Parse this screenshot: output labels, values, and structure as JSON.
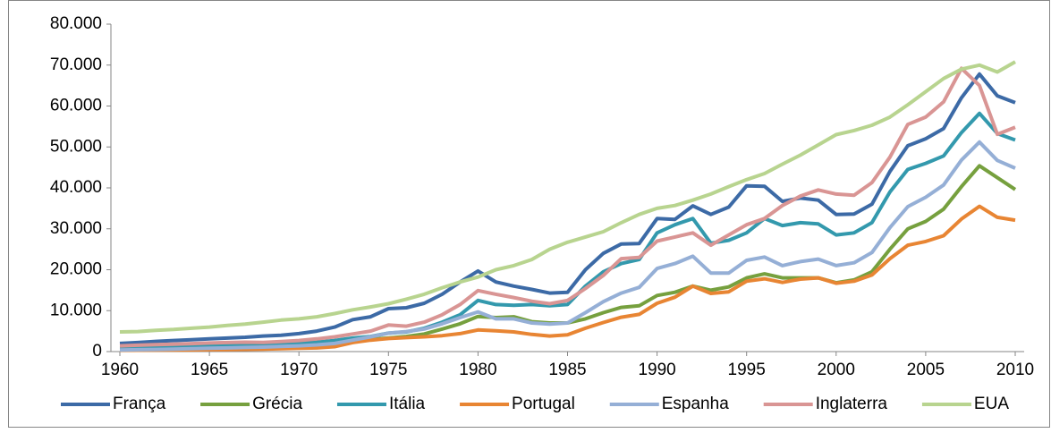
{
  "chart_data": {
    "type": "line",
    "x": [
      1960,
      1961,
      1962,
      1963,
      1964,
      1965,
      1966,
      1967,
      1968,
      1969,
      1970,
      1971,
      1972,
      1973,
      1974,
      1975,
      1976,
      1977,
      1978,
      1979,
      1980,
      1981,
      1982,
      1983,
      1984,
      1985,
      1986,
      1987,
      1988,
      1989,
      1990,
      1991,
      1992,
      1993,
      1994,
      1995,
      1996,
      1997,
      1998,
      1999,
      2000,
      2001,
      2002,
      2003,
      2004,
      2005,
      2006,
      2007,
      2008,
      2009,
      2010
    ],
    "series": [
      {
        "name": "França",
        "color": "#3c6aa6",
        "values": [
          2000,
          2200,
          2500,
          2700,
          2900,
          3100,
          3300,
          3500,
          3800,
          4000,
          4400,
          5000,
          6000,
          7800,
          8500,
          10500,
          10700,
          11800,
          14000,
          17000,
          19700,
          17000,
          16000,
          15200,
          14300,
          14500,
          20000,
          24000,
          26300,
          26400,
          32500,
          32300,
          35600,
          33500,
          35300,
          40500,
          40400,
          36700,
          37500,
          37000,
          33500,
          33600,
          36000,
          44000,
          50300,
          52000,
          54500,
          62000,
          67800,
          62500,
          60800
        ]
      },
      {
        "name": "Grécia",
        "color": "#76a03e",
        "values": [
          500,
          550,
          600,
          650,
          750,
          850,
          950,
          1050,
          1150,
          1300,
          1450,
          1650,
          1900,
          2500,
          3000,
          3300,
          3700,
          4300,
          5500,
          6800,
          8600,
          8300,
          8500,
          7300,
          7000,
          7000,
          8000,
          9500,
          10800,
          11200,
          13700,
          14500,
          16000,
          15000,
          15800,
          18000,
          19000,
          18000,
          18000,
          18000,
          16800,
          17500,
          19500,
          25000,
          30000,
          31800,
          34800,
          40300,
          45400,
          42500,
          39600
        ]
      },
      {
        "name": "Itália",
        "color": "#3399ad",
        "values": [
          800,
          900,
          1000,
          1100,
          1200,
          1350,
          1450,
          1550,
          1700,
          1900,
          2100,
          2300,
          2700,
          3300,
          3700,
          4500,
          4800,
          5700,
          7200,
          9000,
          12500,
          11500,
          11300,
          11500,
          11200,
          11500,
          16000,
          19500,
          21500,
          22500,
          29000,
          31000,
          32500,
          26500,
          27200,
          29000,
          32500,
          30800,
          31500,
          31200,
          28500,
          29000,
          31500,
          39000,
          44500,
          46000,
          47800,
          53500,
          58200,
          53300,
          51700
        ]
      },
      {
        "name": "Portugal",
        "color": "#e88533",
        "values": [
          300,
          320,
          350,
          380,
          420,
          460,
          500,
          550,
          600,
          700,
          800,
          900,
          1200,
          2200,
          2800,
          3200,
          3400,
          3600,
          3900,
          4400,
          5300,
          5100,
          4800,
          4200,
          3800,
          4100,
          5700,
          7100,
          8400,
          9100,
          11800,
          13300,
          16000,
          14200,
          14600,
          17200,
          17800,
          16900,
          17700,
          18000,
          16700,
          17200,
          18700,
          22700,
          26000,
          26900,
          28300,
          32400,
          35500,
          32800,
          32100
        ]
      },
      {
        "name": "Espanha",
        "color": "#95afd6",
        "values": [
          400,
          450,
          520,
          600,
          700,
          800,
          900,
          1000,
          1100,
          1250,
          1400,
          1650,
          2000,
          2800,
          3600,
          4500,
          4900,
          5500,
          6800,
          8300,
          9700,
          8000,
          8000,
          7000,
          6700,
          7000,
          9500,
          12200,
          14300,
          15700,
          20300,
          21500,
          23300,
          19200,
          19200,
          22300,
          23100,
          21000,
          22000,
          22600,
          21000,
          21700,
          24200,
          30300,
          35400,
          37700,
          40700,
          46800,
          51200,
          46700,
          44800
        ]
      },
      {
        "name": "Inglaterra",
        "color": "#d99594",
        "values": [
          1400,
          1550,
          1700,
          1800,
          1950,
          2100,
          2200,
          2300,
          2250,
          2450,
          2700,
          3100,
          3600,
          4300,
          5000,
          6500,
          6200,
          7200,
          9000,
          11500,
          14900,
          14000,
          13200,
          12300,
          11700,
          12500,
          15400,
          18600,
          22700,
          23000,
          27000,
          28000,
          29000,
          26000,
          28500,
          31000,
          32500,
          35700,
          38000,
          39500,
          38500,
          38200,
          41300,
          47500,
          55500,
          57300,
          61000,
          69200,
          65000,
          53100,
          54800
        ]
      },
      {
        "name": "EUA",
        "color": "#b8d48f",
        "values": [
          4800,
          4900,
          5200,
          5400,
          5700,
          6000,
          6400,
          6700,
          7200,
          7700,
          8000,
          8500,
          9300,
          10200,
          10900,
          11700,
          12800,
          14000,
          15600,
          17000,
          18200,
          20000,
          21000,
          22500,
          25000,
          26700,
          28000,
          29300,
          31500,
          33500,
          35000,
          35700,
          37000,
          38500,
          40300,
          42000,
          43500,
          45800,
          48000,
          50500,
          53000,
          54000,
          55300,
          57300,
          60300,
          63500,
          66700,
          69000,
          70000,
          68300,
          70800
        ]
      }
    ],
    "xlim": [
      1959.5,
      2010.5
    ],
    "xticks": [
      1960,
      1965,
      1970,
      1975,
      1980,
      1985,
      1990,
      1995,
      2000,
      2005,
      2010
    ],
    "ylim": [
      0,
      80000
    ],
    "yticks": [
      {
        "value": 0,
        "label": "0"
      },
      {
        "value": 10000,
        "label": "10.000"
      },
      {
        "value": 20000,
        "label": "20.000"
      },
      {
        "value": 30000,
        "label": "30.000"
      },
      {
        "value": 40000,
        "label": "40.000"
      },
      {
        "value": 50000,
        "label": "50.000"
      },
      {
        "value": 60000,
        "label": "60.000"
      },
      {
        "value": 70000,
        "label": "70.000"
      },
      {
        "value": 80000,
        "label": "80.000"
      }
    ],
    "grid": false,
    "legend": "bottom"
  }
}
